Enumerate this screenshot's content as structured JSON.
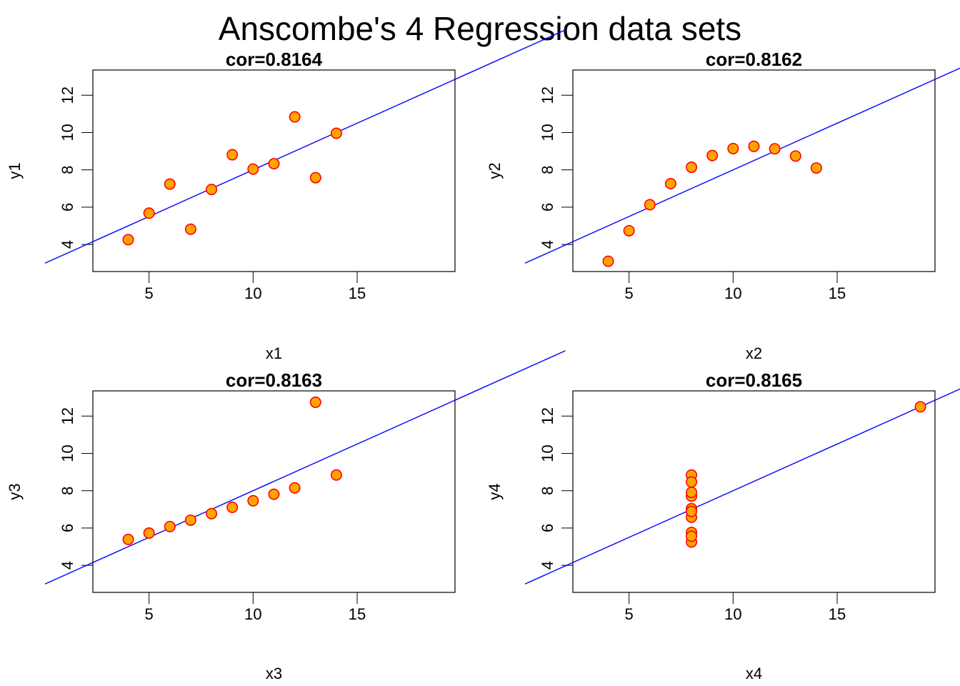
{
  "title": "Anscombe's 4 Regression data sets",
  "colors": {
    "point_fill": "#FFA500",
    "point_stroke": "#FF0000",
    "line": "#0000FF"
  },
  "chart_data": [
    {
      "type": "scatter",
      "title": "cor=0.8164",
      "xlabel": "x1",
      "ylabel": "y1",
      "xlim": [
        2.3,
        19.7
      ],
      "ylim": [
        2.55,
        13.35
      ],
      "xticks": [
        5,
        10,
        15
      ],
      "yticks": [
        4,
        6,
        8,
        10,
        12
      ],
      "fit": {
        "intercept": 3.0,
        "slope": 0.5
      },
      "x": [
        10,
        8,
        13,
        9,
        11,
        14,
        6,
        4,
        12,
        7,
        5
      ],
      "y": [
        8.04,
        6.95,
        7.58,
        8.81,
        8.33,
        9.96,
        7.24,
        4.26,
        10.84,
        4.82,
        5.68
      ]
    },
    {
      "type": "scatter",
      "title": "cor=0.8162",
      "xlabel": "x2",
      "ylabel": "y2",
      "xlim": [
        2.3,
        19.7
      ],
      "ylim": [
        2.55,
        13.35
      ],
      "xticks": [
        5,
        10,
        15
      ],
      "yticks": [
        4,
        6,
        8,
        10,
        12
      ],
      "fit": {
        "intercept": 3.0,
        "slope": 0.5
      },
      "x": [
        10,
        8,
        13,
        9,
        11,
        14,
        6,
        4,
        12,
        7,
        5
      ],
      "y": [
        9.14,
        8.14,
        8.74,
        8.77,
        9.26,
        8.1,
        6.13,
        3.1,
        9.13,
        7.26,
        4.74
      ]
    },
    {
      "type": "scatter",
      "title": "cor=0.8163",
      "xlabel": "x3",
      "ylabel": "y3",
      "xlim": [
        2.3,
        19.7
      ],
      "ylim": [
        2.55,
        13.35
      ],
      "xticks": [
        5,
        10,
        15
      ],
      "yticks": [
        4,
        6,
        8,
        10,
        12
      ],
      "fit": {
        "intercept": 3.0,
        "slope": 0.5
      },
      "x": [
        10,
        8,
        13,
        9,
        11,
        14,
        6,
        4,
        12,
        7,
        5
      ],
      "y": [
        7.46,
        6.77,
        12.74,
        7.11,
        7.81,
        8.84,
        6.08,
        5.39,
        8.15,
        6.42,
        5.73
      ]
    },
    {
      "type": "scatter",
      "title": "cor=0.8165",
      "xlabel": "x4",
      "ylabel": "y4",
      "xlim": [
        2.3,
        19.7
      ],
      "ylim": [
        2.55,
        13.35
      ],
      "xticks": [
        5,
        10,
        15
      ],
      "yticks": [
        4,
        6,
        8,
        10,
        12
      ],
      "fit": {
        "intercept": 3.0,
        "slope": 0.5
      },
      "x": [
        8,
        8,
        8,
        8,
        8,
        8,
        8,
        19,
        8,
        8,
        8
      ],
      "y": [
        6.58,
        5.76,
        7.71,
        8.84,
        8.47,
        7.04,
        5.25,
        12.5,
        5.56,
        7.91,
        6.89
      ]
    }
  ]
}
